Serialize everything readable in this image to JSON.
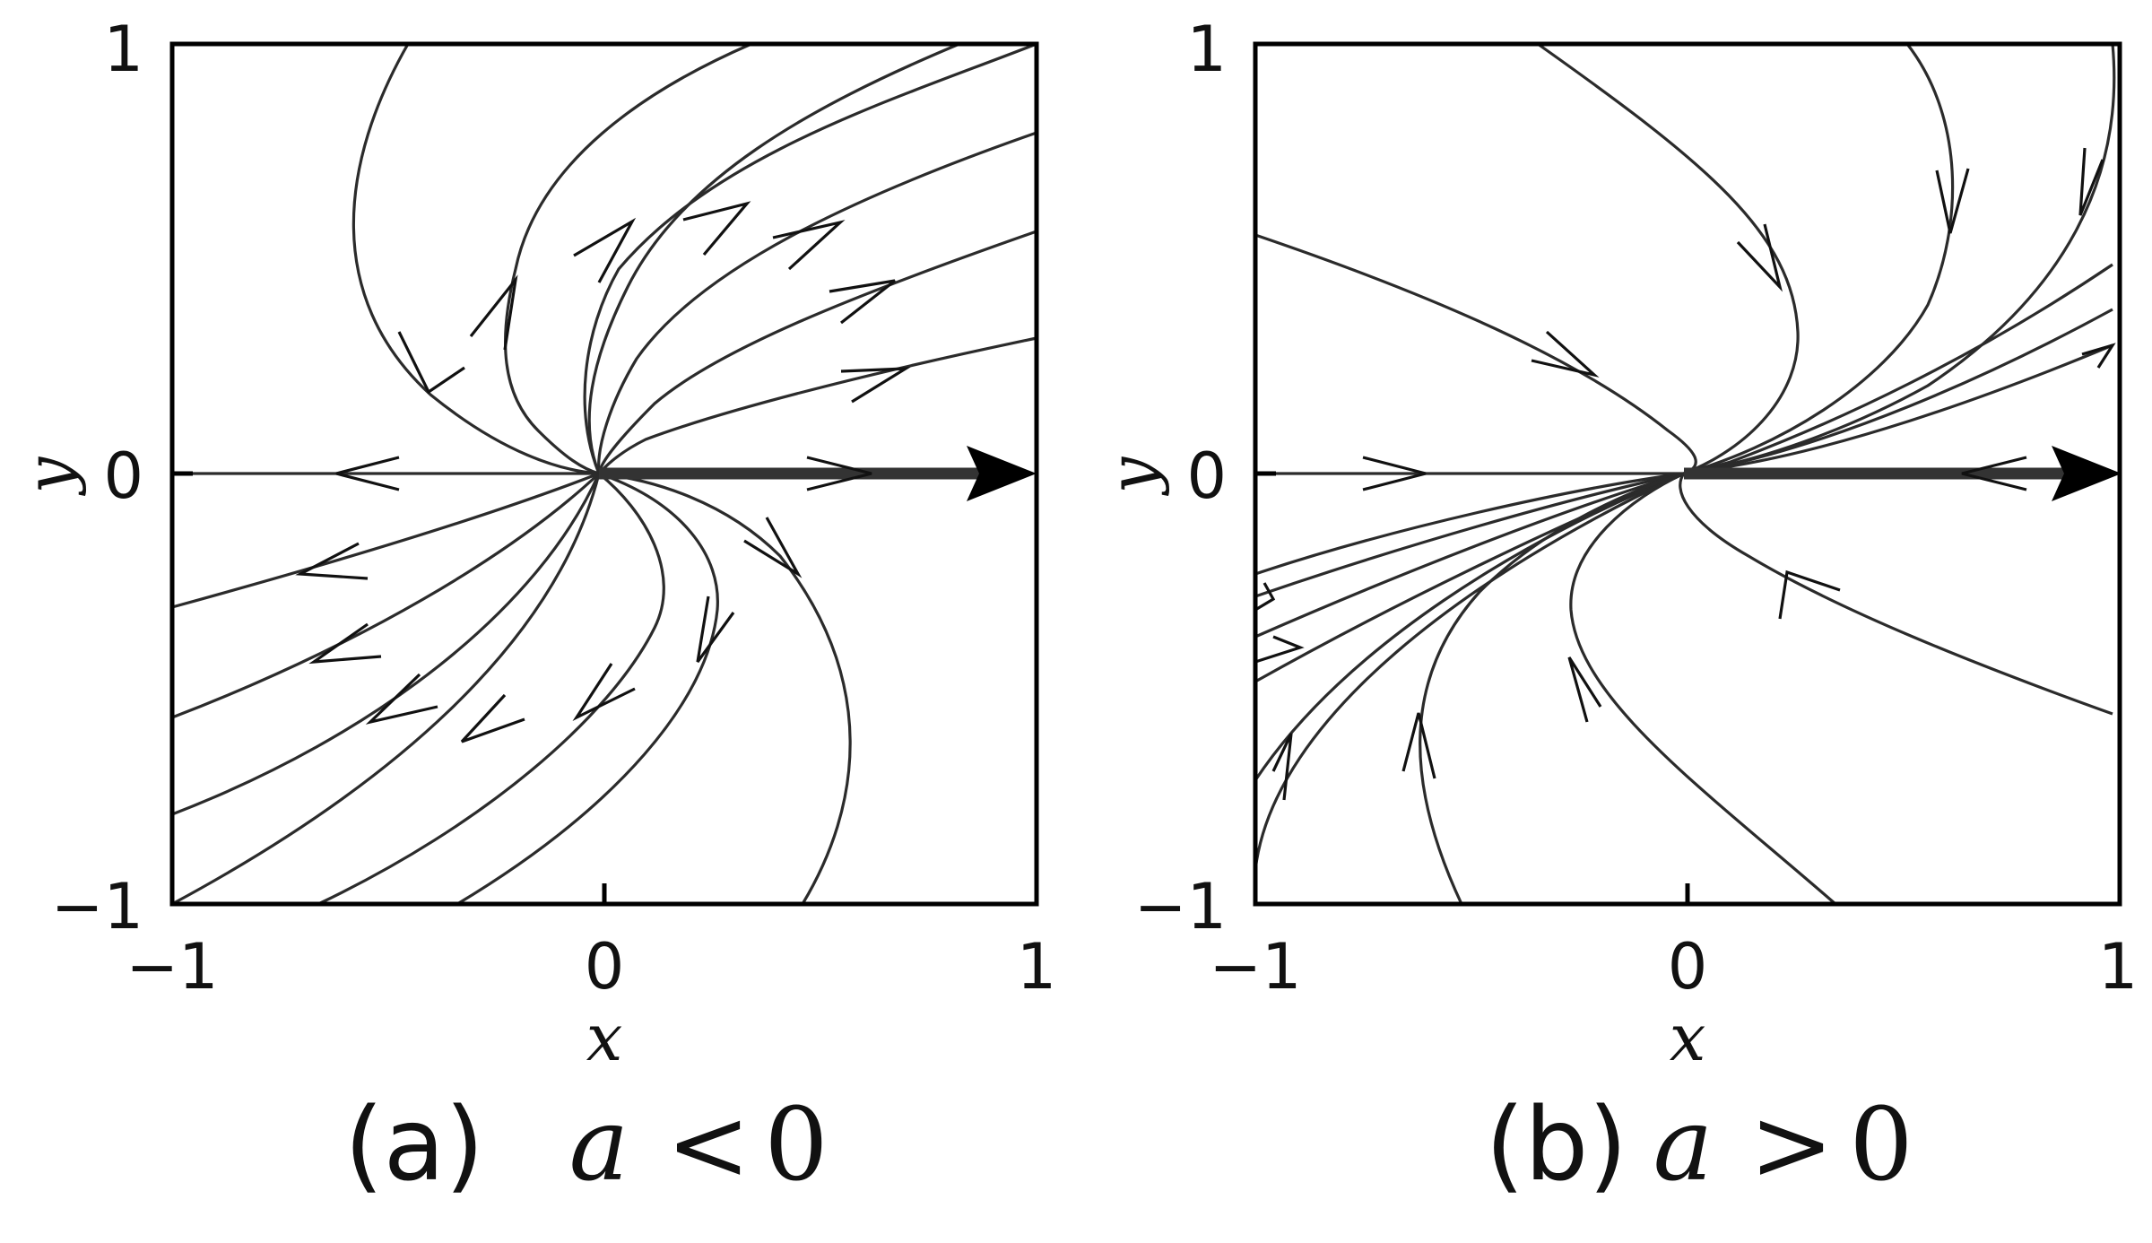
{
  "panels": [
    {
      "id": "a",
      "caption_label": "(a)",
      "caption_param": "a",
      "caption_op": "<",
      "caption_value": "0",
      "x_label": "x",
      "y_label": "y",
      "x_ticks": [
        "−1",
        "0",
        "1"
      ],
      "y_ticks": [
        "1",
        "0",
        "−1"
      ],
      "x_range": [
        -1,
        1
      ],
      "y_range": [
        -1,
        1
      ]
    },
    {
      "id": "b",
      "caption_label": "(b)",
      "caption_param": "a",
      "caption_op": ">",
      "caption_value": "0",
      "x_label": "x",
      "y_label": "y",
      "x_ticks": [
        "−1",
        "0",
        "1"
      ],
      "y_ticks": [
        "1",
        "0",
        "−1"
      ],
      "x_range": [
        -1,
        1
      ],
      "y_range": [
        -1,
        1
      ]
    }
  ]
}
